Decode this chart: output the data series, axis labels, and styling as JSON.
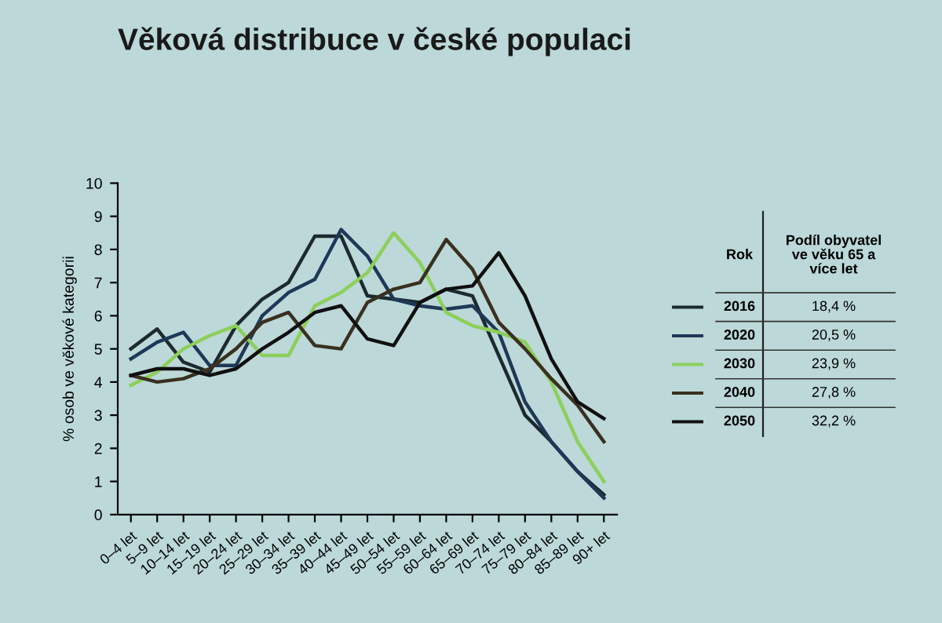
{
  "chart_data": {
    "type": "line",
    "title": "Věková distribuce v české populaci",
    "ylabel": "% osob ve věkové kategorii",
    "categories": [
      "0–4 let",
      "5–9 let",
      "10–14 let",
      "15–19 let",
      "20–24 let",
      "25–29 let",
      "30–34 let",
      "35–39 let",
      "40–44 let",
      "45–49 let",
      "50–54 let",
      "55–59 let",
      "60–64 let",
      "65–69 let",
      "70–74 let",
      "75–79 let",
      "80–84 let",
      "85–89 let",
      "90+ let"
    ],
    "series": [
      {
        "name": "2016",
        "color": "#1c2a30",
        "values": [
          5.0,
          5.6,
          4.6,
          4.3,
          5.7,
          6.5,
          7.0,
          8.4,
          8.4,
          6.6,
          6.5,
          6.4,
          6.8,
          6.6,
          4.8,
          3.0,
          2.2,
          1.3,
          0.6
        ]
      },
      {
        "name": "2020",
        "color": "#1f3858",
        "values": [
          4.7,
          5.2,
          5.5,
          4.5,
          4.5,
          6.0,
          6.7,
          7.1,
          8.6,
          7.8,
          6.5,
          6.3,
          6.2,
          6.3,
          5.5,
          3.4,
          2.2,
          1.3,
          0.5
        ]
      },
      {
        "name": "2030",
        "color": "#8ccf5a",
        "values": [
          3.9,
          4.3,
          5.0,
          5.4,
          5.7,
          4.8,
          4.8,
          6.3,
          6.7,
          7.3,
          8.5,
          7.6,
          6.1,
          5.7,
          5.5,
          5.2,
          4.0,
          2.2,
          1.0
        ]
      },
      {
        "name": "2040",
        "color": "#3a3020",
        "values": [
          4.2,
          4.0,
          4.1,
          4.4,
          5.0,
          5.8,
          6.1,
          5.1,
          5.0,
          6.4,
          6.8,
          7.0,
          8.3,
          7.4,
          5.8,
          5.0,
          4.1,
          3.3,
          2.2
        ]
      },
      {
        "name": "2050",
        "color": "#101010",
        "values": [
          4.2,
          4.4,
          4.4,
          4.2,
          4.4,
          5.0,
          5.5,
          6.1,
          6.3,
          5.3,
          5.1,
          6.4,
          6.8,
          6.9,
          7.9,
          6.6,
          4.7,
          3.4,
          2.9
        ]
      }
    ],
    "ylim": [
      0,
      10
    ],
    "yticks": [
      0,
      1,
      2,
      3,
      4,
      5,
      6,
      7,
      8,
      9,
      10
    ],
    "grid": false,
    "legend": "right",
    "marker": "none",
    "line_style": "solid",
    "legend_title": "Rok",
    "annotations": [
      "Podíl obyvatel\nve věku 65 a\nvíce let",
      "18,4 %",
      "20,5 %",
      "23,9 %",
      "27,8 %",
      "32,2 %"
    ]
  }
}
